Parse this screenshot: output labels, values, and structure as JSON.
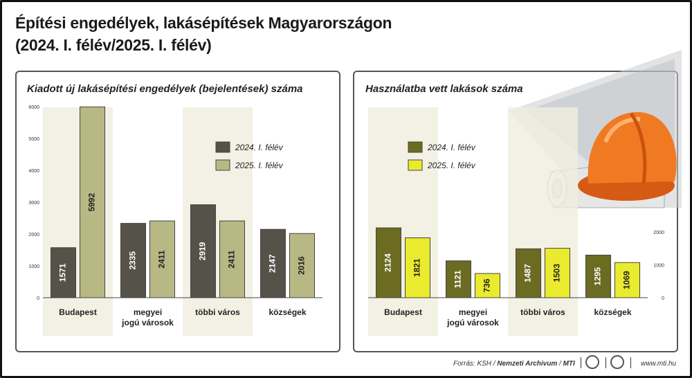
{
  "title_line1": "Építési engedélyek, lakásépítések Magyarországon",
  "title_line2": "(2024. I. félév/2025. I. félév)",
  "footer": {
    "source_prefix": "Forrás: KSH / ",
    "archive": "Nemzeti Archivum",
    "sep": " / ",
    "agency": "MTI",
    "website": "www.mti.hu"
  },
  "chart_data": [
    {
      "type": "bar",
      "title": "Kiadott új lakásépítési engedélyek (bejelentések) száma",
      "categories": [
        "Budapest",
        "megyei\njogú városok",
        "többi város",
        "községek"
      ],
      "series": [
        {
          "name": "2024. I. félév",
          "values": [
            1571,
            2335,
            2919,
            2147
          ]
        },
        {
          "name": "2025. I. félév",
          "values": [
            5992,
            2411,
            2411,
            2016
          ]
        }
      ],
      "yticks": [
        0,
        1000,
        2000,
        3000,
        4000,
        5000,
        6000
      ],
      "ylim": [
        0,
        6000
      ],
      "legend": "top-right",
      "colors": [
        "#555249",
        "#b8b884"
      ]
    },
    {
      "type": "bar",
      "title": "Használatba vett lakások száma",
      "categories": [
        "Budapest",
        "megyei\njogú városok",
        "többi város",
        "községek"
      ],
      "series": [
        {
          "name": "2024. I. félév",
          "values": [
            2124,
            1121,
            1487,
            1295
          ]
        },
        {
          "name": "2025. I. félév",
          "values": [
            1821,
            736,
            1503,
            1069
          ]
        }
      ],
      "yticks": [
        0,
        1000,
        2000
      ],
      "ylim": [
        0,
        6000
      ],
      "legend": "top-left",
      "colors": [
        "#6b6b22",
        "#eaea2e"
      ]
    }
  ]
}
